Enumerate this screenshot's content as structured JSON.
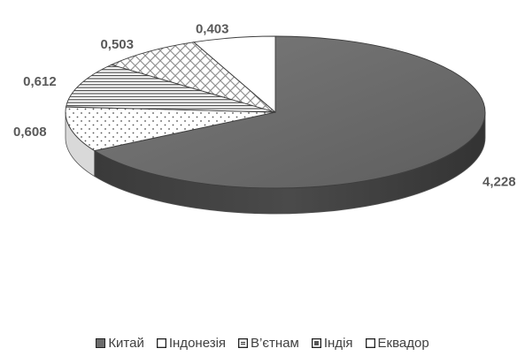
{
  "chart_data": {
    "type": "pie",
    "style": "3d",
    "categories": [
      "Китай",
      "Індонезія",
      "В’єтнам",
      "Індія",
      "Еквадор"
    ],
    "values": [
      4.228,
      0.608,
      0.612,
      0.503,
      0.403
    ],
    "value_labels": [
      "4,228",
      "0,608",
      "0,612",
      "0,503",
      "0,403"
    ],
    "legend_position": "bottom",
    "colors": [
      "#6b6b6b",
      "#ffffff",
      "#ffffff",
      "#ffffff",
      "#ffffff"
    ],
    "patterns": [
      "solid",
      "dots",
      "horizontal-lines",
      "crosshatch",
      "none"
    ]
  }
}
